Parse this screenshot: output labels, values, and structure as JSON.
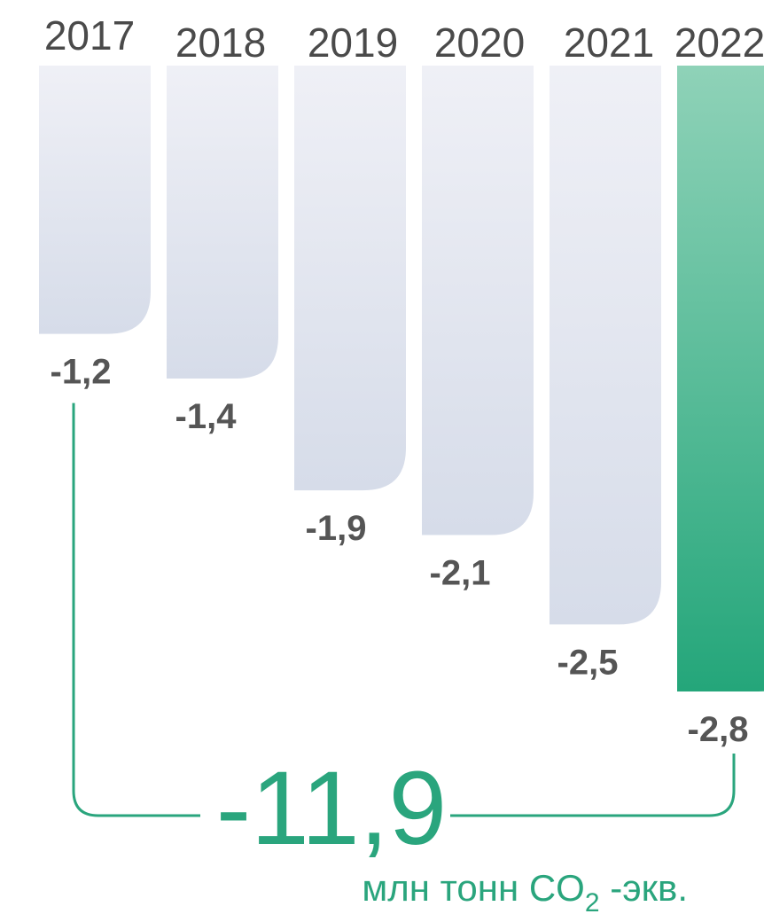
{
  "chart_data": {
    "type": "bar",
    "categories": [
      "2017",
      "2018",
      "2019",
      "2020",
      "2021",
      "2022"
    ],
    "values": [
      -1.2,
      -1.4,
      -1.9,
      -2.1,
      -2.5,
      -2.8
    ],
    "value_labels": [
      "-1,2",
      "-1,4",
      "-1,9",
      "-2,1",
      "-2,5",
      "-2,8"
    ],
    "highlight_index": 5,
    "ylim": [
      -2.8,
      0
    ],
    "grid": false,
    "legend": "none",
    "total": {
      "value": -11.9,
      "label": "-11,9",
      "unit_main": "млн тонн CO",
      "unit_sub": "2",
      "unit_tail": " -экв."
    },
    "colors": {
      "bar_light_top": "#eff0f6",
      "bar_light_bottom": "#d6dce9",
      "bar_highlight_top": "#8fd2b8",
      "bar_highlight_bottom": "#24a67a",
      "text": "#4a4a4a",
      "value_text": "#555555",
      "accent": "#2aa57d"
    }
  }
}
